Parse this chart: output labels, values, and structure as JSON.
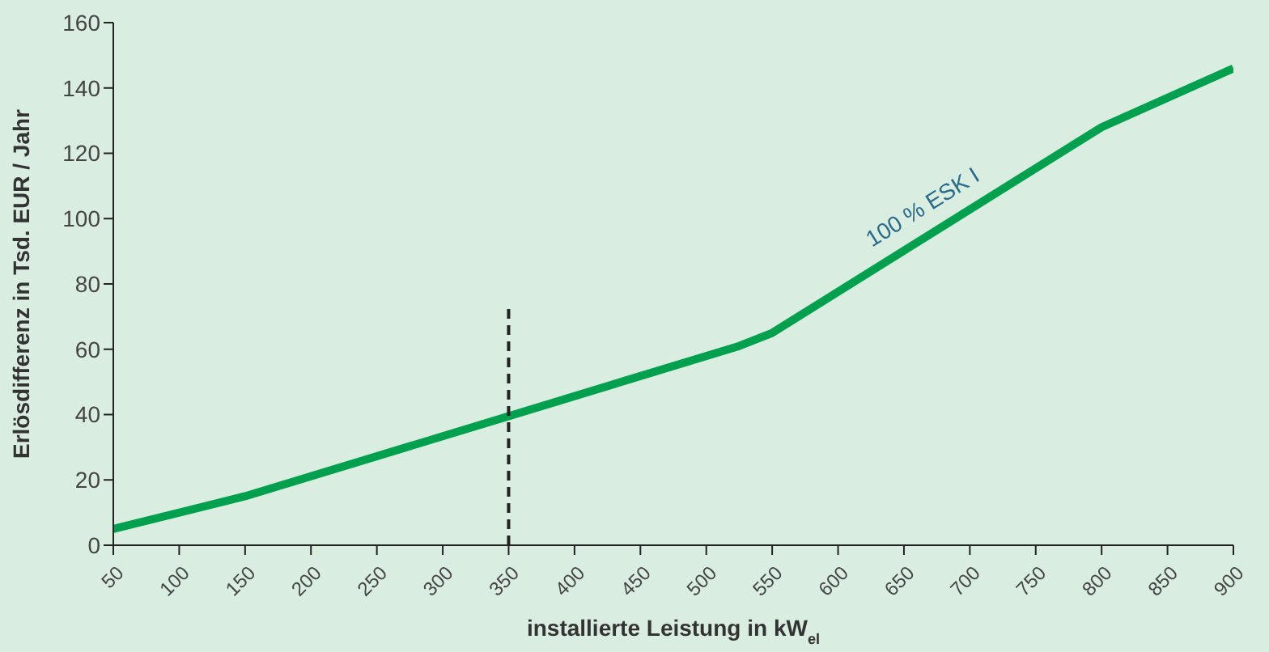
{
  "chart_data": {
    "type": "line",
    "xlabel": "installierte Leistung in kW$_{el}$",
    "ylabel": "Erlösdifferenz in Tsd. EUR / Jahr",
    "x": [
      50,
      150,
      350,
      525,
      550,
      800,
      900
    ],
    "series": [
      {
        "name": "100 % ESK I",
        "color": "#00a04f",
        "values": [
          5,
          15,
          39.5,
          61,
          65,
          128,
          146
        ]
      },
      {
        "type": "line",
        "color": "#222222",
        "line_style": "dashed",
        "x": [
          350,
          350
        ],
        "values": [
          0,
          74
        ]
      }
    ],
    "xlim": [
      50,
      900
    ],
    "xticks": [
      50,
      100,
      150,
      200,
      250,
      300,
      350,
      400,
      450,
      500,
      550,
      600,
      650,
      700,
      750,
      800,
      850,
      900
    ],
    "ylim": [
      0,
      160
    ],
    "yticks": [
      0,
      20,
      40,
      60,
      80,
      100,
      120,
      140,
      160
    ],
    "grid": false,
    "legend": false,
    "marker": "none",
    "line_style": "solid"
  }
}
